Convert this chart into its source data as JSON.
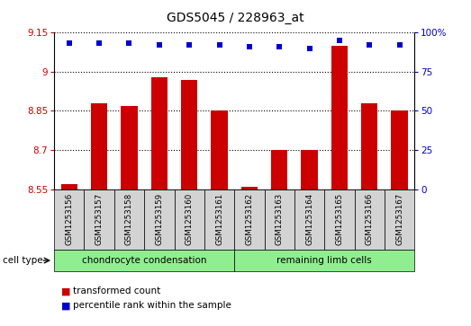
{
  "title": "GDS5045 / 228963_at",
  "samples": [
    "GSM1253156",
    "GSM1253157",
    "GSM1253158",
    "GSM1253159",
    "GSM1253160",
    "GSM1253161",
    "GSM1253162",
    "GSM1253163",
    "GSM1253164",
    "GSM1253165",
    "GSM1253166",
    "GSM1253167"
  ],
  "bar_values": [
    8.57,
    8.88,
    8.87,
    8.98,
    8.97,
    8.85,
    8.56,
    8.7,
    8.7,
    9.1,
    8.88,
    8.85
  ],
  "percentile_values": [
    93,
    93,
    93,
    92,
    92,
    92,
    91,
    91,
    90,
    95,
    92,
    92
  ],
  "ylim_left": [
    8.55,
    9.15
  ],
  "ylim_right": [
    0,
    100
  ],
  "yticks_left": [
    8.55,
    8.7,
    8.85,
    9.0,
    9.15
  ],
  "yticks_right": [
    0,
    25,
    50,
    75,
    100
  ],
  "ytick_labels_left": [
    "8.55",
    "8.7",
    "8.85",
    "9",
    "9.15"
  ],
  "ytick_labels_right": [
    "0",
    "25",
    "50",
    "75",
    "100%"
  ],
  "bar_color": "#cc0000",
  "dot_color": "#0000cc",
  "group1_label": "chondrocyte condensation",
  "group2_label": "remaining limb cells",
  "group1_color": "#90ee90",
  "group2_color": "#90ee90",
  "sample_box_color": "#d3d3d3",
  "cell_type_label": "cell type",
  "legend_bar_label": "transformed count",
  "legend_dot_label": "percentile rank within the sample",
  "plot_bg_color": "#ffffff",
  "grid_color": "#000000",
  "n_group1": 6,
  "n_group2": 6
}
